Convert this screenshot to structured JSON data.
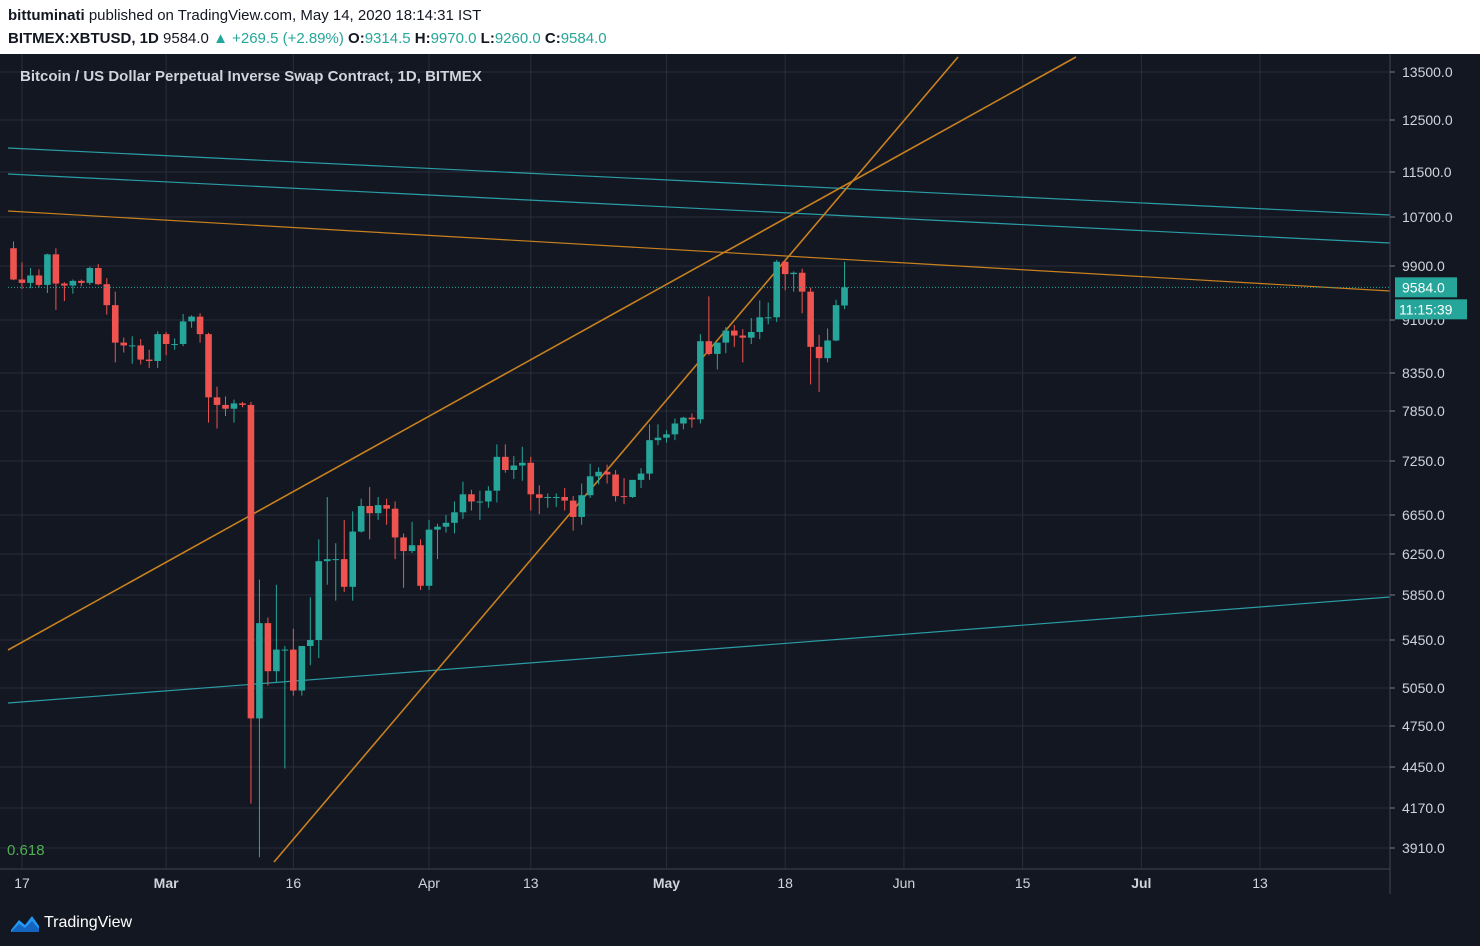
{
  "header": {
    "publisher": "bittuminati",
    "published_text": "published on TradingView.com, May 14, 2020 18:14:31 IST",
    "symbol": "BITMEX:XBTUSD, 1D",
    "last": "9584.0",
    "change": "+269.5 (+2.89%)",
    "o_label": "O:",
    "o": "9314.5",
    "h_label": "H:",
    "h": "9970.0",
    "l_label": "L:",
    "l": "9260.0",
    "c_label": "C:",
    "c": "9584.0"
  },
  "footer": {
    "brand": "TradingView",
    "icon": "tradingview-logo-icon"
  },
  "colors": {
    "background": "#131722",
    "up": "#26a69a",
    "down": "#ef5350",
    "trendline_orange": "#c8811f",
    "trendline_teal": "#2a9da6",
    "grid": "#2a2e39"
  },
  "chart_data": {
    "type": "candlestick",
    "title": "Bitcoin / US Dollar Perpetual Inverse Swap Contract, 1D, BITMEX",
    "price_labels": [
      "13500.0",
      "12500.0",
      "11500.0",
      "10700.0",
      "9900.0",
      "9100.0",
      "8350.0",
      "7850.0",
      "7250.0",
      "6650.0",
      "6250.0",
      "5850.0",
      "5450.0",
      "5050.0",
      "4750.0",
      "4450.0",
      "4170.0",
      "3910.0"
    ],
    "last_price_label": "9584.0",
    "countdown_label": "11:15:39",
    "x_labels": [
      "17",
      "Mar",
      "16",
      "Apr",
      "13",
      "May",
      "18",
      "Jun",
      "15",
      "Jul",
      "13"
    ],
    "fib_label": "0.618",
    "candles": [
      {
        "o": 10190,
        "h": 10300,
        "l": 9690,
        "c": 9700
      },
      {
        "o": 9700,
        "h": 9960,
        "l": 9560,
        "c": 9650
      },
      {
        "o": 9650,
        "h": 9870,
        "l": 9570,
        "c": 9760
      },
      {
        "o": 9760,
        "h": 9850,
        "l": 9580,
        "c": 9620
      },
      {
        "o": 9620,
        "h": 10100,
        "l": 9500,
        "c": 10090
      },
      {
        "o": 10090,
        "h": 10190,
        "l": 9250,
        "c": 9640
      },
      {
        "o": 9640,
        "h": 9660,
        "l": 9380,
        "c": 9610
      },
      {
        "o": 9610,
        "h": 9700,
        "l": 9490,
        "c": 9680
      },
      {
        "o": 9680,
        "h": 9700,
        "l": 9600,
        "c": 9650
      },
      {
        "o": 9650,
        "h": 9890,
        "l": 9620,
        "c": 9870
      },
      {
        "o": 9870,
        "h": 9930,
        "l": 9620,
        "c": 9630
      },
      {
        "o": 9630,
        "h": 9720,
        "l": 9180,
        "c": 9320
      },
      {
        "o": 9320,
        "h": 9520,
        "l": 8500,
        "c": 8780
      },
      {
        "o": 8780,
        "h": 8850,
        "l": 8640,
        "c": 8740
      },
      {
        "o": 8740,
        "h": 8870,
        "l": 8480,
        "c": 8740
      },
      {
        "o": 8740,
        "h": 8830,
        "l": 8470,
        "c": 8540
      },
      {
        "o": 8540,
        "h": 8680,
        "l": 8420,
        "c": 8520
      },
      {
        "o": 8520,
        "h": 8940,
        "l": 8420,
        "c": 8900
      },
      {
        "o": 8900,
        "h": 8930,
        "l": 8600,
        "c": 8760
      },
      {
        "o": 8760,
        "h": 8840,
        "l": 8680,
        "c": 8760
      },
      {
        "o": 8760,
        "h": 9190,
        "l": 8730,
        "c": 9080
      },
      {
        "o": 9080,
        "h": 9170,
        "l": 8990,
        "c": 9150
      },
      {
        "o": 9150,
        "h": 9200,
        "l": 8780,
        "c": 8900
      },
      {
        "o": 8900,
        "h": 8920,
        "l": 7710,
        "c": 8030
      },
      {
        "o": 8030,
        "h": 8170,
        "l": 7640,
        "c": 7930
      },
      {
        "o": 7930,
        "h": 8040,
        "l": 7790,
        "c": 7880
      },
      {
        "o": 7880,
        "h": 8000,
        "l": 7710,
        "c": 7950
      },
      {
        "o": 7950,
        "h": 7970,
        "l": 7900,
        "c": 7930
      },
      {
        "o": 7930,
        "h": 7970,
        "l": 4200,
        "c": 4810
      },
      {
        "o": 4810,
        "h": 6000,
        "l": 3850,
        "c": 5600
      },
      {
        "o": 5600,
        "h": 5650,
        "l": 5070,
        "c": 5190
      },
      {
        "o": 5190,
        "h": 5950,
        "l": 5100,
        "c": 5370
      },
      {
        "o": 5370,
        "h": 5400,
        "l": 4440,
        "c": 5370
      },
      {
        "o": 5370,
        "h": 5550,
        "l": 4990,
        "c": 5030
      },
      {
        "o": 5030,
        "h": 5400,
        "l": 4990,
        "c": 5400
      },
      {
        "o": 5400,
        "h": 5830,
        "l": 5240,
        "c": 5450
      },
      {
        "o": 5450,
        "h": 6400,
        "l": 5300,
        "c": 6180
      },
      {
        "o": 6180,
        "h": 6850,
        "l": 5950,
        "c": 6200
      },
      {
        "o": 6200,
        "h": 6360,
        "l": 5800,
        "c": 6200
      },
      {
        "o": 6200,
        "h": 6600,
        "l": 5880,
        "c": 5930
      },
      {
        "o": 5930,
        "h": 6690,
        "l": 5800,
        "c": 6480
      },
      {
        "o": 6480,
        "h": 6830,
        "l": 6470,
        "c": 6750
      },
      {
        "o": 6750,
        "h": 6960,
        "l": 6400,
        "c": 6670
      },
      {
        "o": 6670,
        "h": 6850,
        "l": 6600,
        "c": 6760
      },
      {
        "o": 6760,
        "h": 6830,
        "l": 6550,
        "c": 6720
      },
      {
        "o": 6720,
        "h": 6800,
        "l": 6200,
        "c": 6420
      },
      {
        "o": 6420,
        "h": 6460,
        "l": 5920,
        "c": 6280
      },
      {
        "o": 6280,
        "h": 6580,
        "l": 6260,
        "c": 6340
      },
      {
        "o": 6340,
        "h": 6400,
        "l": 5900,
        "c": 5940
      },
      {
        "o": 5940,
        "h": 6600,
        "l": 5900,
        "c": 6500
      },
      {
        "o": 6500,
        "h": 6560,
        "l": 6200,
        "c": 6530
      },
      {
        "o": 6530,
        "h": 6650,
        "l": 6470,
        "c": 6570
      },
      {
        "o": 6570,
        "h": 6800,
        "l": 6460,
        "c": 6680
      },
      {
        "o": 6680,
        "h": 7020,
        "l": 6610,
        "c": 6880
      },
      {
        "o": 6880,
        "h": 6930,
        "l": 6700,
        "c": 6800
      },
      {
        "o": 6800,
        "h": 6920,
        "l": 6600,
        "c": 6800
      },
      {
        "o": 6800,
        "h": 6970,
        "l": 6730,
        "c": 6920
      },
      {
        "o": 6920,
        "h": 7450,
        "l": 6790,
        "c": 7300
      },
      {
        "o": 7300,
        "h": 7450,
        "l": 7120,
        "c": 7150
      },
      {
        "o": 7150,
        "h": 7310,
        "l": 7050,
        "c": 7200
      },
      {
        "o": 7200,
        "h": 7420,
        "l": 7030,
        "c": 7230
      },
      {
        "o": 7230,
        "h": 7300,
        "l": 6700,
        "c": 6880
      },
      {
        "o": 6880,
        "h": 6980,
        "l": 6660,
        "c": 6840
      },
      {
        "o": 6840,
        "h": 6890,
        "l": 6730,
        "c": 6850
      },
      {
        "o": 6850,
        "h": 6890,
        "l": 6740,
        "c": 6850
      },
      {
        "o": 6850,
        "h": 6950,
        "l": 6700,
        "c": 6810
      },
      {
        "o": 6810,
        "h": 6860,
        "l": 6490,
        "c": 6630
      },
      {
        "o": 6630,
        "h": 7000,
        "l": 6550,
        "c": 6870
      },
      {
        "o": 6870,
        "h": 7220,
        "l": 6840,
        "c": 7080
      },
      {
        "o": 7080,
        "h": 7180,
        "l": 6990,
        "c": 7130
      },
      {
        "o": 7130,
        "h": 7210,
        "l": 7000,
        "c": 7100
      },
      {
        "o": 7100,
        "h": 7150,
        "l": 6800,
        "c": 6860
      },
      {
        "o": 6860,
        "h": 7060,
        "l": 6770,
        "c": 6850
      },
      {
        "o": 6850,
        "h": 7040,
        "l": 6840,
        "c": 7040
      },
      {
        "o": 7040,
        "h": 7170,
        "l": 6950,
        "c": 7110
      },
      {
        "o": 7110,
        "h": 7690,
        "l": 7040,
        "c": 7500
      },
      {
        "o": 7500,
        "h": 7690,
        "l": 7440,
        "c": 7530
      },
      {
        "o": 7530,
        "h": 7620,
        "l": 7470,
        "c": 7570
      },
      {
        "o": 7570,
        "h": 7760,
        "l": 7500,
        "c": 7700
      },
      {
        "o": 7700,
        "h": 7780,
        "l": 7630,
        "c": 7770
      },
      {
        "o": 7770,
        "h": 7820,
        "l": 7650,
        "c": 7750
      },
      {
        "o": 7750,
        "h": 8900,
        "l": 7700,
        "c": 8800
      },
      {
        "o": 8800,
        "h": 9450,
        "l": 8600,
        "c": 8620
      },
      {
        "o": 8620,
        "h": 8780,
        "l": 8400,
        "c": 8780
      },
      {
        "o": 8780,
        "h": 9000,
        "l": 8630,
        "c": 8950
      },
      {
        "o": 8950,
        "h": 9030,
        "l": 8720,
        "c": 8880
      },
      {
        "o": 8880,
        "h": 8970,
        "l": 8500,
        "c": 8850
      },
      {
        "o": 8850,
        "h": 9130,
        "l": 8760,
        "c": 8930
      },
      {
        "o": 8930,
        "h": 9390,
        "l": 8830,
        "c": 9140
      },
      {
        "o": 9140,
        "h": 9360,
        "l": 9040,
        "c": 9140
      },
      {
        "o": 9140,
        "h": 10000,
        "l": 9070,
        "c": 9970
      },
      {
        "o": 9970,
        "h": 9990,
        "l": 9540,
        "c": 9780
      },
      {
        "o": 9780,
        "h": 9820,
        "l": 9520,
        "c": 9800
      },
      {
        "o": 9800,
        "h": 9860,
        "l": 9200,
        "c": 9520
      },
      {
        "o": 9520,
        "h": 9580,
        "l": 8200,
        "c": 8720
      },
      {
        "o": 8720,
        "h": 8890,
        "l": 8100,
        "c": 8560
      },
      {
        "o": 8560,
        "h": 8980,
        "l": 8500,
        "c": 8810
      },
      {
        "o": 8810,
        "h": 9400,
        "l": 8800,
        "c": 9320
      },
      {
        "o": 9314.5,
        "h": 9970,
        "l": 9260,
        "c": 9584
      }
    ]
  }
}
